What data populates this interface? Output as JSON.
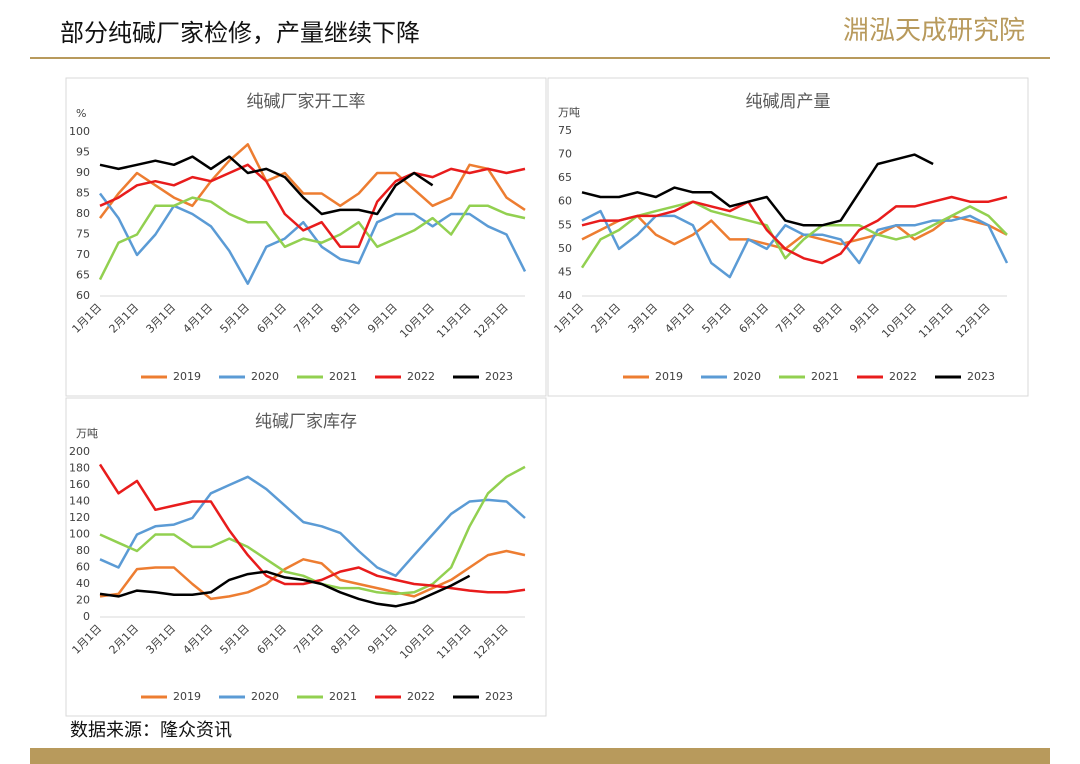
{
  "header": {
    "title": "部分纯碱厂家检修，产量继续下降",
    "logo": "淵泓天成研究院"
  },
  "source": "数据来源：隆众资讯",
  "chart_data": [
    {
      "type": "line",
      "title": "纯碱厂家开工率",
      "ylabel": "%",
      "categories": [
        "1月1日",
        null,
        "2月1日",
        null,
        "3月1日",
        null,
        "4月1日",
        null,
        "5月1日",
        null,
        "6月1日",
        null,
        "7月1日",
        null,
        "8月1日",
        null,
        "9月1日",
        null,
        "10月1日",
        null,
        "11月1日",
        null,
        "12月1日",
        null
      ],
      "ylim": [
        60,
        100
      ],
      "yticks": [
        60,
        65,
        70,
        75,
        80,
        85,
        90,
        95,
        100
      ],
      "series": [
        {
          "name": "2019",
          "color": "#ed7d31",
          "values": [
            79,
            85,
            90,
            87,
            84,
            82,
            88,
            93,
            97,
            88,
            90,
            85,
            85,
            82,
            85,
            90,
            90,
            86,
            82,
            84,
            92,
            91,
            84,
            81
          ]
        },
        {
          "name": "2020",
          "color": "#5b9bd5",
          "values": [
            85,
            79,
            70,
            75,
            82,
            80,
            77,
            71,
            63,
            72,
            74,
            78,
            72,
            69,
            68,
            78,
            80,
            80,
            77,
            80,
            80,
            77,
            75,
            66
          ]
        },
        {
          "name": "2021",
          "color": "#92d050",
          "values": [
            64,
            73,
            75,
            82,
            82,
            84,
            83,
            80,
            78,
            78,
            72,
            74,
            73,
            75,
            78,
            72,
            74,
            76,
            79,
            75,
            82,
            82,
            80,
            79
          ]
        },
        {
          "name": "2022",
          "color": "#e81c1c",
          "values": [
            82,
            84,
            87,
            88,
            87,
            89,
            88,
            90,
            92,
            88,
            80,
            76,
            78,
            72,
            72,
            83,
            88,
            90,
            89,
            91,
            90,
            91,
            90,
            91
          ]
        },
        {
          "name": "2023",
          "color": "#000000",
          "values": [
            92,
            91,
            92,
            93,
            92,
            94,
            91,
            94,
            90,
            91,
            89,
            84,
            80,
            81,
            81,
            80,
            87,
            90,
            87,
            null,
            null,
            null,
            null,
            null
          ]
        }
      ]
    },
    {
      "type": "line",
      "title": "纯碱周产量",
      "ylabel": "万吨",
      "categories": [
        "1月1日",
        null,
        "2月1日",
        null,
        "3月1日",
        null,
        "4月1日",
        null,
        "5月1日",
        null,
        "6月1日",
        null,
        "7月1日",
        null,
        "8月1日",
        null,
        "9月1日",
        null,
        "10月1日",
        null,
        "11月1日",
        null,
        "12月1日",
        null
      ],
      "ylim": [
        40,
        75
      ],
      "yticks": [
        40,
        45,
        50,
        55,
        60,
        65,
        70,
        75
      ],
      "series": [
        {
          "name": "2019",
          "color": "#ed7d31",
          "values": [
            52,
            54,
            56,
            57,
            53,
            51,
            53,
            56,
            52,
            52,
            51,
            50,
            53,
            52,
            51,
            52,
            53,
            55,
            52,
            54,
            57,
            56,
            55,
            53
          ]
        },
        {
          "name": "2020",
          "color": "#5b9bd5",
          "values": [
            56,
            58,
            50,
            53,
            57,
            57,
            55,
            47,
            44,
            52,
            50,
            55,
            53,
            53,
            52,
            47,
            54,
            55,
            55,
            56,
            56,
            57,
            55,
            47
          ]
        },
        {
          "name": "2021",
          "color": "#92d050",
          "values": [
            46,
            52,
            54,
            57,
            58,
            59,
            60,
            58,
            57,
            56,
            55,
            48,
            52,
            55,
            55,
            55,
            53,
            52,
            53,
            55,
            57,
            59,
            57,
            53
          ]
        },
        {
          "name": "2022",
          "color": "#e81c1c",
          "values": [
            55,
            56,
            56,
            57,
            57,
            58,
            60,
            59,
            58,
            60,
            54,
            50,
            48,
            47,
            49,
            54,
            56,
            59,
            59,
            60,
            61,
            60,
            60,
            61
          ]
        },
        {
          "name": "2023",
          "color": "#000000",
          "values": [
            62,
            61,
            61,
            62,
            61,
            63,
            62,
            62,
            59,
            60,
            61,
            56,
            55,
            55,
            56,
            62,
            68,
            69,
            70,
            68,
            null,
            null,
            null,
            null
          ]
        }
      ]
    },
    {
      "type": "line",
      "title": "纯碱厂家库存",
      "ylabel": "万吨",
      "categories": [
        "1月1日",
        null,
        "2月1日",
        null,
        "3月1日",
        null,
        "4月1日",
        null,
        "5月1日",
        null,
        "6月1日",
        null,
        "7月1日",
        null,
        "8月1日",
        null,
        "9月1日",
        null,
        "10月1日",
        null,
        "11月1日",
        null,
        "12月1日",
        null
      ],
      "ylim": [
        0,
        200
      ],
      "yticks": [
        0,
        20,
        40,
        60,
        80,
        100,
        120,
        140,
        160,
        180,
        200
      ],
      "series": [
        {
          "name": "2019",
          "color": "#ed7d31",
          "values": [
            25,
            28,
            58,
            60,
            60,
            40,
            22,
            25,
            30,
            40,
            58,
            70,
            65,
            45,
            40,
            35,
            30,
            25,
            35,
            45,
            60,
            75,
            80,
            75
          ]
        },
        {
          "name": "2020",
          "color": "#5b9bd5",
          "values": [
            70,
            60,
            100,
            110,
            112,
            120,
            150,
            160,
            170,
            155,
            135,
            115,
            110,
            102,
            80,
            60,
            50,
            75,
            100,
            125,
            140,
            142,
            140,
            120
          ]
        },
        {
          "name": "2021",
          "color": "#92d050",
          "values": [
            100,
            90,
            80,
            100,
            100,
            85,
            85,
            95,
            85,
            70,
            55,
            50,
            40,
            35,
            35,
            30,
            28,
            30,
            40,
            60,
            110,
            150,
            170,
            182
          ]
        },
        {
          "name": "2022",
          "color": "#e81c1c",
          "values": [
            185,
            150,
            165,
            130,
            135,
            140,
            140,
            105,
            75,
            50,
            40,
            40,
            45,
            55,
            60,
            50,
            45,
            40,
            38,
            35,
            32,
            30,
            30,
            33
          ]
        },
        {
          "name": "2023",
          "color": "#000000",
          "values": [
            28,
            25,
            32,
            30,
            27,
            27,
            30,
            45,
            52,
            55,
            48,
            45,
            40,
            30,
            22,
            16,
            13,
            18,
            28,
            38,
            50,
            null,
            null,
            null
          ]
        }
      ]
    }
  ]
}
